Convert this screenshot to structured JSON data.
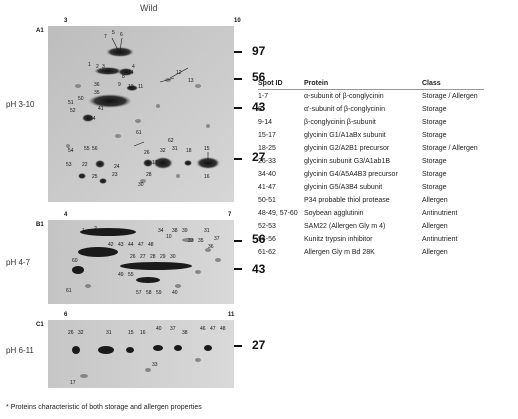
{
  "figure": {
    "title": "Wild",
    "footnote": "* Proteins characteristic of both storage and allergen properties"
  },
  "panels": [
    {
      "id": "A1",
      "ph": "pH 3-10",
      "left_tick": "3",
      "right_tick": "10",
      "mw": [
        "97",
        "56",
        "43",
        "27"
      ]
    },
    {
      "id": "B1",
      "ph": "pH 4-7",
      "left_tick": "4",
      "right_tick": "7",
      "mw": [
        "56",
        "43"
      ]
    },
    {
      "id": "C1",
      "ph": "pH 6-11",
      "left_tick": "6",
      "right_tick": "11",
      "mw": [
        "27"
      ]
    }
  ],
  "spot_labels": {
    "A1": [
      "7",
      "5",
      "6",
      "1",
      "2",
      "3",
      "4",
      "8",
      "14",
      "12",
      "13",
      "9",
      "10",
      "11",
      "51",
      "50",
      "36",
      "35",
      "41",
      "52",
      "53",
      "55",
      "24",
      "34",
      "61",
      "62",
      "32",
      "31",
      "15",
      "16",
      "54",
      "56",
      "25",
      "26",
      "22",
      "23",
      "28",
      "18",
      "17",
      "30"
    ],
    "B1": [
      "1",
      "2",
      "34",
      "38",
      "39",
      "10",
      "31",
      "33",
      "35",
      "36",
      "37",
      "42",
      "43",
      "44",
      "47",
      "48",
      "26",
      "27",
      "28",
      "29",
      "30",
      "60",
      "61",
      "49",
      "55",
      "58",
      "59",
      "40",
      "57"
    ],
    "C1": [
      "26",
      "32",
      "31",
      "15",
      "16",
      "40",
      "37",
      "38",
      "46",
      "47",
      "48",
      "33",
      "17"
    ]
  },
  "legend": {
    "headers": {
      "spot": "Spot ID",
      "protein": "Protein",
      "class": "Class"
    },
    "rows": [
      {
        "spot": "1-7",
        "protein": "α-subunit of β-conglycinin",
        "class": "Storage / Allergen"
      },
      {
        "spot": "8",
        "protein": "α'-subunit of β-conglycinin",
        "class": "Storage"
      },
      {
        "spot": "9-14",
        "protein": "β-conglycinin β-subunit",
        "class": "Storage"
      },
      {
        "spot": "15-17",
        "protein": "glycinin G1/A1aBx subunit",
        "class": "Storage"
      },
      {
        "spot": "18-25",
        "protein": "glycinin G2/A2B1 precursor",
        "class": "Storage / Allergen"
      },
      {
        "spot": "26-33",
        "protein": "glycinin subunit G3/A1ab1B",
        "class": "Storage"
      },
      {
        "spot": "34-40",
        "protein": "glycinin G4/A5A4B3 precursor",
        "class": "Storage"
      },
      {
        "spot": "41-47",
        "protein": "glycinin G5/A3B4 subunit",
        "class": "Storage"
      },
      {
        "spot": "50-51",
        "protein": "P34 probable thiol protease",
        "class": "Allergen"
      },
      {
        "spot": "48-49, 57-60",
        "protein": "Soybean agglutinin",
        "class": "Antinutrient"
      },
      {
        "spot": "52-53",
        "protein": "SAM22 (Allergen Gly m 4)",
        "class": "Allergen"
      },
      {
        "spot": "54-56",
        "protein": "Kunitz trypsin inhibitor",
        "class": "Antinutrient"
      },
      {
        "spot": "61-62",
        "protein": "Allergen Gly m Bd 28K",
        "class": "Allergen"
      }
    ]
  }
}
